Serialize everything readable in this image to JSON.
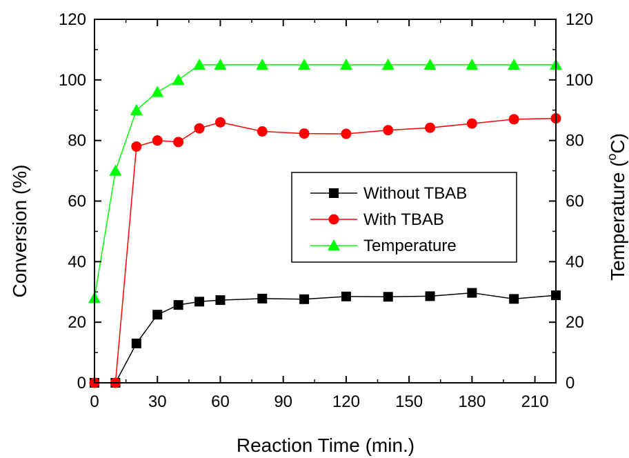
{
  "chart_data": {
    "type": "line",
    "xlabel": "Reaction Time (min.)",
    "ylabel": "Conversion (%)",
    "y2label_main": "Temperature (",
    "y2label_sup": "o",
    "y2label_end": "C)",
    "xlim": [
      0,
      220
    ],
    "ylim": [
      0,
      120
    ],
    "y2lim": [
      0,
      120
    ],
    "xticks": [
      0,
      30,
      60,
      90,
      120,
      150,
      180,
      210
    ],
    "yticks": [
      0,
      20,
      40,
      60,
      80,
      100,
      120
    ],
    "y2ticks": [
      0,
      20,
      40,
      60,
      80,
      100,
      120
    ],
    "grid": false,
    "legend_position": "center-right",
    "series": [
      {
        "name": "Without TBAB",
        "color": "#000000",
        "marker": "square",
        "axis": "left",
        "x": [
          0,
          10,
          20,
          30,
          40,
          50,
          60,
          80,
          100,
          120,
          140,
          160,
          180,
          200,
          220
        ],
        "y": [
          0,
          0,
          13,
          22.5,
          25.7,
          26.8,
          27.3,
          27.8,
          27.6,
          28.5,
          28.4,
          28.6,
          29.7,
          27.7,
          28.9
        ]
      },
      {
        "name": "With TBAB",
        "color": "#ff0000",
        "marker": "circle",
        "axis": "left",
        "x": [
          0,
          10,
          20,
          30,
          40,
          50,
          60,
          80,
          100,
          120,
          140,
          160,
          180,
          200,
          220
        ],
        "y": [
          0,
          0,
          78,
          80,
          79.5,
          84,
          86,
          83,
          82.3,
          82.2,
          83.4,
          84.2,
          85.6,
          87,
          87.3
        ]
      },
      {
        "name": "Temperature",
        "color": "#00ff00",
        "marker": "triangle",
        "axis": "right",
        "x": [
          0,
          10,
          20,
          30,
          40,
          50,
          60,
          80,
          100,
          120,
          140,
          160,
          180,
          200,
          220
        ],
        "y": [
          28,
          70,
          90,
          96,
          100,
          105,
          105,
          105,
          105,
          105,
          105,
          105,
          105,
          105,
          105
        ]
      }
    ]
  }
}
